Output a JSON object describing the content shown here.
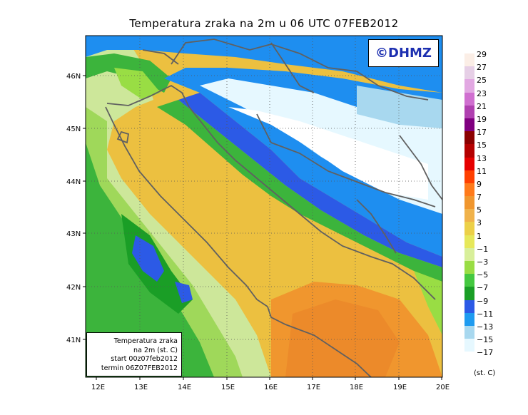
{
  "title": "Temperatura zraka na 2m u 06 UTC 07FEB2012",
  "logo_text": "©DHMZ",
  "info_box": {
    "line1": "Temperatura zraka",
    "line2": "na 2m (st. C)",
    "line3": "start 00z07feb2012",
    "line4": "termin 06Z07FEB2012"
  },
  "lat_labels": [
    "46N",
    "45N",
    "44N",
    "43N",
    "42N",
    "41N"
  ],
  "lon_labels": [
    "12E",
    "13E",
    "14E",
    "15E",
    "16E",
    "17E",
    "18E",
    "19E",
    "20E"
  ],
  "legend": {
    "unit": "(st. C)",
    "labels": [
      "29",
      "27",
      "25",
      "23",
      "21",
      "19",
      "17",
      "15",
      "13",
      "11",
      "9",
      "7",
      "5",
      "3",
      "1",
      "−1",
      "−3",
      "−5",
      "−7",
      "−9",
      "−11",
      "−13",
      "−15",
      "−17"
    ],
    "colors": [
      "#fbeee6",
      "#e6cfe6",
      "#e2a8e2",
      "#d06fd0",
      "#b040b0",
      "#800080",
      "#8b0000",
      "#b40000",
      "#e60000",
      "#ff4000",
      "#ff7a1a",
      "#f0962e",
      "#f0b24a",
      "#ecd048",
      "#e6e85a",
      "#d8ef9a",
      "#99dd44",
      "#44c840",
      "#1a9e26",
      "#2c5ae6",
      "#1e9bf0",
      "#a8d8ef",
      "#e6f8ff",
      "#ffffff"
    ]
  },
  "colors": {
    "sea_warm": "#e8a030",
    "sea_mid": "#ecc040",
    "land_green": "#3cb43c",
    "snow_white": "#ffffff",
    "cold_blue": "#1e8ef0",
    "border_gray": "#606060"
  }
}
